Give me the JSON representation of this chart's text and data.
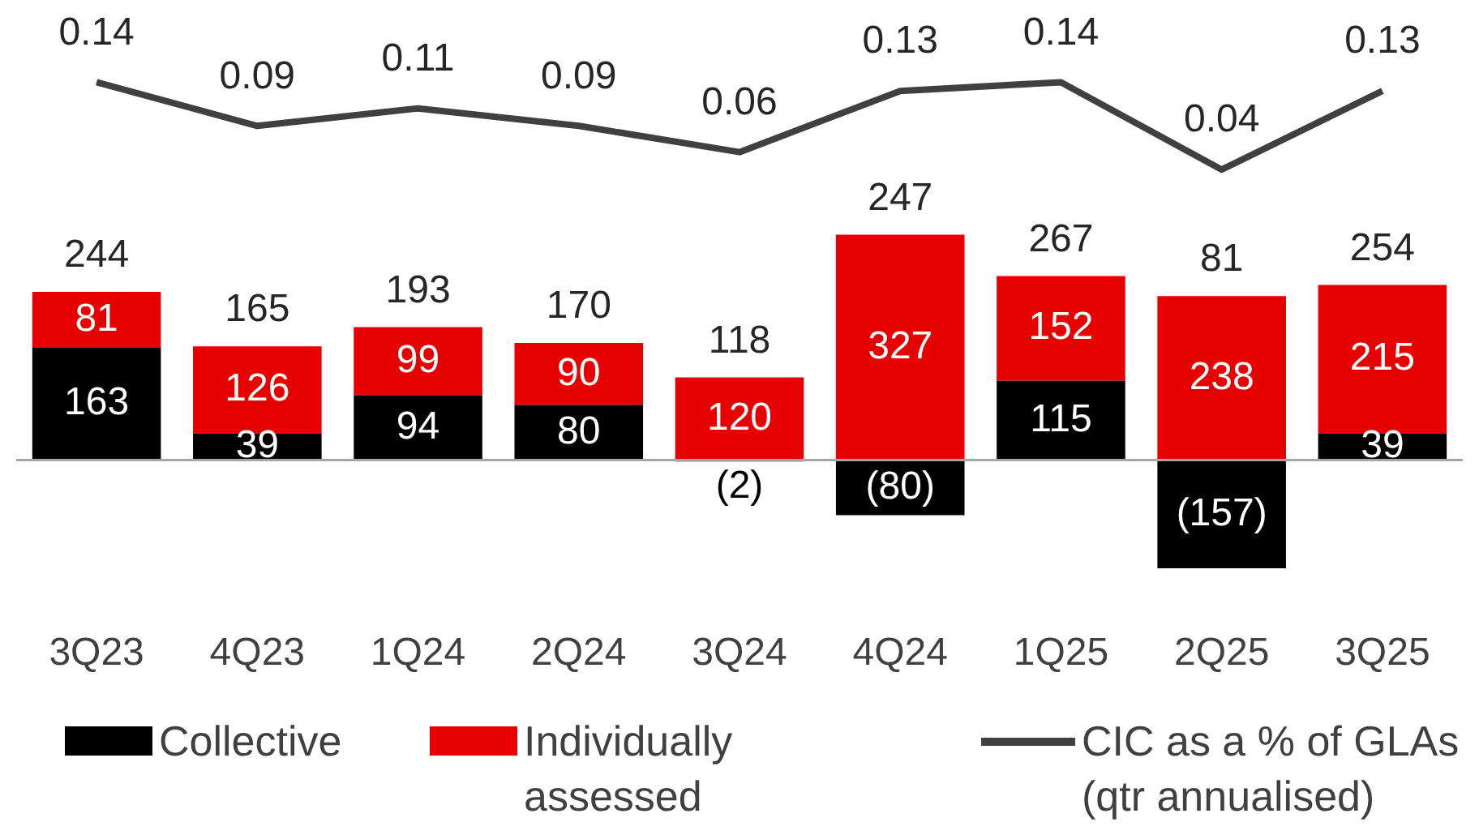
{
  "chart_data": [
    {
      "type": "line",
      "categories": [
        null,
        null,
        null,
        null,
        null,
        null,
        null,
        null,
        null
      ],
      "series": [
        {
          "name": "CIC as a % of GLAs (qtr annualised)",
          "color": "#404040",
          "marker": "none",
          "values": [
            0.14,
            0.09,
            0.11,
            0.09,
            0.06,
            0.13,
            0.14,
            0.04,
            0.13
          ],
          "value_labels": [
            "0.14",
            "0.09",
            "0.11",
            "0.09",
            "0.06",
            "0.13",
            "0.14",
            "0.04",
            "0.13"
          ]
        }
      ],
      "grid": false,
      "legend": "bottom",
      "tick_labels": false
    },
    {
      "type": "bar",
      "stacked": true,
      "categories": [
        "3Q23",
        "4Q23",
        "1Q24",
        "2Q24",
        "3Q24",
        "4Q24",
        "1Q25",
        "2Q25",
        "3Q25"
      ],
      "series": [
        {
          "name": "Collective",
          "color": "#000000",
          "values": [
            163,
            39,
            94,
            80,
            -2,
            -80,
            115,
            -157,
            39
          ],
          "value_labels": [
            "163",
            "39",
            "94",
            "80",
            "(2)",
            "(80)",
            "115",
            "(157)",
            "39"
          ]
        },
        {
          "name": "Individually assessed",
          "color": "#e60000",
          "values": [
            81,
            126,
            99,
            90,
            120,
            327,
            152,
            238,
            215
          ],
          "value_labels": [
            "81",
            "126",
            "99",
            "90",
            "120",
            "327",
            "152",
            "238",
            "215"
          ]
        }
      ],
      "totals": [
        "244",
        "165",
        "193",
        "170",
        "118",
        "247",
        "267",
        "81",
        "254"
      ],
      "grid": false,
      "legend": "bottom",
      "tick_labels": "x"
    }
  ]
}
